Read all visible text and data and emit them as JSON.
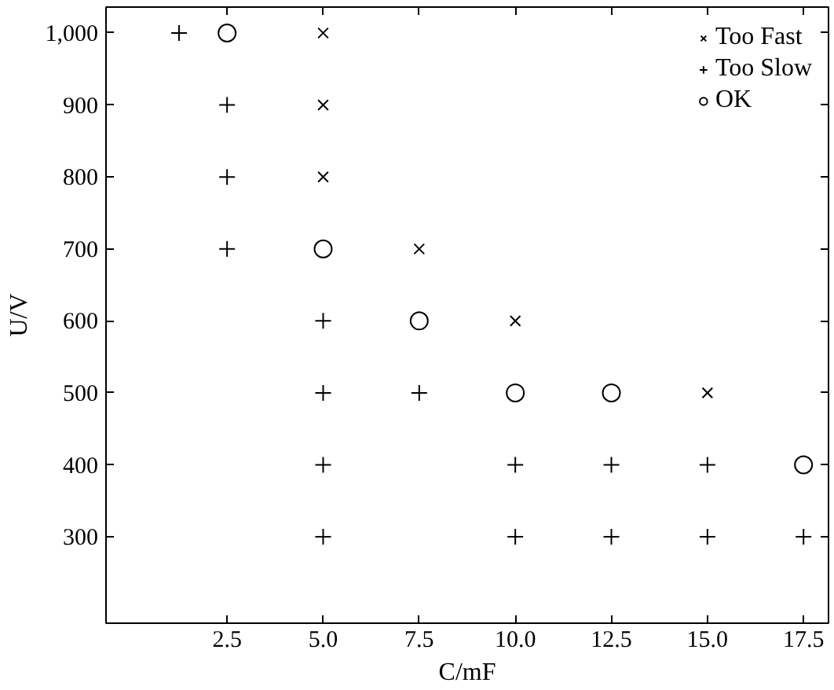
{
  "chart_data": {
    "type": "scatter",
    "xlabel": "C/mF",
    "ylabel": "U/V",
    "xlim": [
      -0.65,
      18.15
    ],
    "ylim": [
      180,
      1036
    ],
    "xticks": [
      {
        "value": 2.5,
        "label": "2.5"
      },
      {
        "value": 5,
        "label": "5.0"
      },
      {
        "value": 7.5,
        "label": "7.5"
      },
      {
        "value": 10,
        "label": "10.0"
      },
      {
        "value": 12.5,
        "label": "12.5"
      },
      {
        "value": 15,
        "label": "15.0"
      },
      {
        "value": 17.5,
        "label": "17.5"
      }
    ],
    "yticks": [
      300,
      400,
      500,
      600,
      700,
      800,
      900,
      {
        "value": 1000,
        "label": "1,000"
      }
    ],
    "grid": false,
    "legend": "top right",
    "series": [
      {
        "name": "Too Fast",
        "color": "#000000",
        "marker": "x",
        "x": [
          5,
          5,
          5,
          7.5,
          10,
          15
        ],
        "values": [
          1000,
          900,
          800,
          700,
          600,
          500
        ]
      },
      {
        "name": "Too Slow",
        "color": "#000000",
        "marker": "cross",
        "x": [
          1.25,
          2.5,
          2.5,
          2.5,
          5,
          5,
          7.5,
          5,
          10,
          12.5,
          15,
          5,
          10,
          12.5,
          15,
          17.5
        ],
        "values": [
          1000,
          900,
          800,
          700,
          600,
          500,
          500,
          400,
          400,
          400,
          400,
          300,
          300,
          300,
          300,
          300
        ]
      },
      {
        "name": "OK",
        "color": "#000000",
        "marker": "circle",
        "x": [
          2.5,
          5,
          7.5,
          10,
          12.5,
          17.5
        ],
        "values": [
          1000,
          700,
          600,
          500,
          500,
          400
        ]
      }
    ]
  }
}
